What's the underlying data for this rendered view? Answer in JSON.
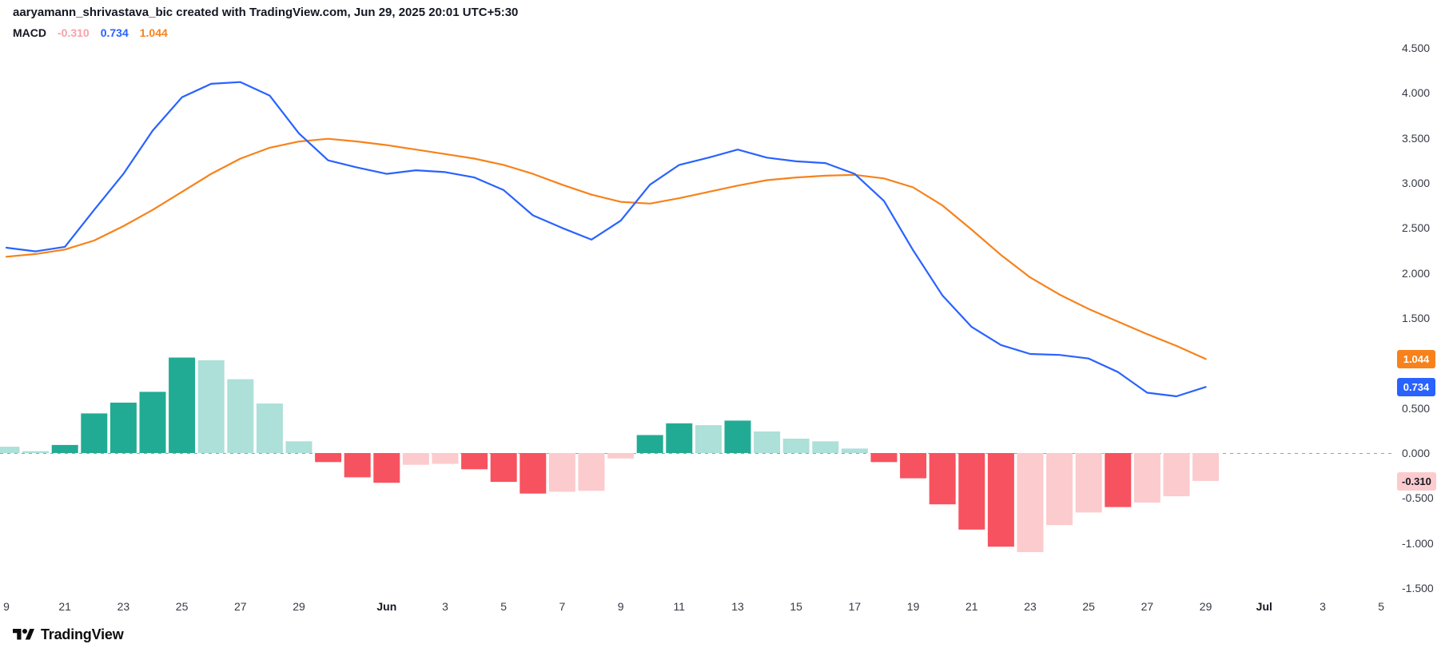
{
  "header": {
    "attribution": "aaryamann_shrivastava_bic created with TradingView.com, Jun 29, 2025 20:01 UTC+5:30"
  },
  "legend": {
    "indicator": "MACD",
    "values": {
      "histogram": "-0.310",
      "macd": "0.734",
      "signal": "1.044"
    },
    "value_colors": {
      "histogram": "#f7a1a9",
      "macd": "#2962ff",
      "signal": "#f7821b"
    }
  },
  "footer": {
    "brand": "TradingView"
  },
  "chart_data": {
    "type": "line+bar",
    "title": "MACD indicator pane",
    "x_period": "daily bars, May 19 2025 - Jun 29 2025",
    "legend_position": "top-left",
    "grid": "off",
    "ylim": [
      -1.75,
      4.75
    ],
    "series": [
      {
        "name": "MACD line",
        "color": "#2962ff",
        "values": [
          2.28,
          2.24,
          2.29,
          2.7,
          3.1,
          3.58,
          3.95,
          4.1,
          4.12,
          3.97,
          3.55,
          3.25,
          3.17,
          3.1,
          3.14,
          3.12,
          3.06,
          2.92,
          2.64,
          2.5,
          2.37,
          2.58,
          2.98,
          3.2,
          3.28,
          3.37,
          3.28,
          3.24,
          3.22,
          3.1,
          2.8,
          2.25,
          1.75,
          1.4,
          1.2,
          1.1,
          1.09,
          1.05,
          0.9,
          0.67,
          0.63,
          0.734
        ]
      },
      {
        "name": "Signal line",
        "color": "#f7821b",
        "values": [
          2.18,
          2.21,
          2.26,
          2.36,
          2.52,
          2.7,
          2.9,
          3.1,
          3.27,
          3.39,
          3.46,
          3.49,
          3.46,
          3.42,
          3.37,
          3.32,
          3.27,
          3.2,
          3.1,
          2.98,
          2.87,
          2.79,
          2.77,
          2.83,
          2.9,
          2.97,
          3.03,
          3.06,
          3.08,
          3.09,
          3.05,
          2.95,
          2.75,
          2.48,
          2.2,
          1.95,
          1.76,
          1.6,
          1.46,
          1.32,
          1.19,
          1.044
        ]
      }
    ],
    "histogram": {
      "name": "MACD histogram",
      "values": [
        0.07,
        0.02,
        0.09,
        0.44,
        0.56,
        0.68,
        1.06,
        1.03,
        0.82,
        0.55,
        0.13,
        -0.1,
        -0.27,
        -0.33,
        -0.13,
        -0.12,
        -0.18,
        -0.32,
        -0.45,
        -0.43,
        -0.42,
        -0.06,
        0.2,
        0.33,
        0.31,
        0.36,
        0.24,
        0.16,
        0.13,
        0.05,
        -0.1,
        -0.28,
        -0.57,
        -0.85,
        -1.04,
        -1.1,
        -0.8,
        -0.66,
        -0.6,
        -0.55,
        -0.48,
        -0.31
      ],
      "states": [
        "up_light",
        "up_light",
        "up",
        "up",
        "up",
        "up",
        "up",
        "up_light",
        "up_light",
        "up_light",
        "up_light",
        "down",
        "down",
        "down",
        "down_light",
        "down_light",
        "down",
        "down",
        "down",
        "down_light",
        "down_light",
        "down_light",
        "up",
        "up",
        "up_light",
        "up",
        "up_light",
        "up_light",
        "up_light",
        "up_light",
        "down",
        "down",
        "down",
        "down",
        "down",
        "down_light",
        "down_light",
        "down_light",
        "down",
        "down_light",
        "down_light",
        "down_light"
      ],
      "state_colors": {
        "up": "#22ab94",
        "up_light": "#ace0d9",
        "down": "#f7525f",
        "down_light": "#fccbcd"
      }
    },
    "zero_line": {
      "value": 0,
      "color": "#9da0a8",
      "style": "dashed"
    },
    "y_axis": {
      "ticks": [
        {
          "label": "4.500",
          "value": 4.5
        },
        {
          "label": "4.000",
          "value": 4.0
        },
        {
          "label": "3.500",
          "value": 3.5
        },
        {
          "label": "3.000",
          "value": 3.0
        },
        {
          "label": "2.500",
          "value": 2.5
        },
        {
          "label": "2.000",
          "value": 2.0
        },
        {
          "label": "1.500",
          "value": 1.5
        },
        {
          "label": "1.000",
          "value": 1.0
        },
        {
          "label": "0.500",
          "value": 0.5
        },
        {
          "label": "0.000",
          "value": 0.0
        },
        {
          "label": "-0.500",
          "value": -0.5
        },
        {
          "label": "-1.000",
          "value": -1.0
        },
        {
          "label": "-1.500",
          "value": -1.5
        }
      ]
    },
    "x_axis": {
      "ticks": [
        {
          "index": 0,
          "label": "9"
        },
        {
          "index": 2,
          "label": "21"
        },
        {
          "index": 4,
          "label": "23"
        },
        {
          "index": 6,
          "label": "25"
        },
        {
          "index": 8,
          "label": "27"
        },
        {
          "index": 10,
          "label": "29"
        },
        {
          "index": 13,
          "label": "Jun",
          "month": true
        },
        {
          "index": 15,
          "label": "3"
        },
        {
          "index": 17,
          "label": "5"
        },
        {
          "index": 19,
          "label": "7"
        },
        {
          "index": 21,
          "label": "9"
        },
        {
          "index": 23,
          "label": "11"
        },
        {
          "index": 25,
          "label": "13"
        },
        {
          "index": 27,
          "label": "15"
        },
        {
          "index": 29,
          "label": "17"
        },
        {
          "index": 31,
          "label": "19"
        },
        {
          "index": 33,
          "label": "21"
        },
        {
          "index": 35,
          "label": "23"
        },
        {
          "index": 37,
          "label": "25"
        },
        {
          "index": 39,
          "label": "27"
        },
        {
          "index": 41,
          "label": "29"
        },
        {
          "index": 43,
          "label": "Jul",
          "month": true
        },
        {
          "index": 45,
          "label": "3"
        },
        {
          "index": 47,
          "label": "5"
        }
      ]
    },
    "last_value_badges": [
      {
        "name": "signal",
        "label": "1.044",
        "value": 1.044,
        "bg": "#f7821b",
        "fg": "#ffffff"
      },
      {
        "name": "macd",
        "label": "0.734",
        "value": 0.734,
        "bg": "#2962ff",
        "fg": "#ffffff"
      },
      {
        "name": "histogram",
        "label": "-0.310",
        "value": -0.31,
        "bg": "#fccbcd",
        "fg": "#131722"
      }
    ]
  }
}
